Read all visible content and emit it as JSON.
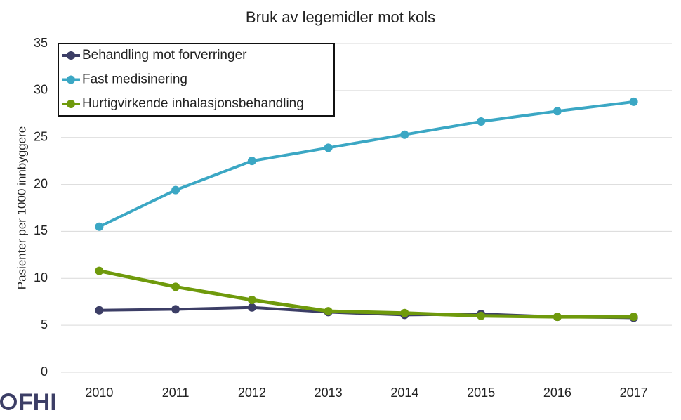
{
  "chart_data": {
    "type": "line",
    "title": "Bruk av legemidler mot kols",
    "y_label": "Pasienter per 1000 innbyggere",
    "categories": [
      "2010",
      "2011",
      "2012",
      "2013",
      "2014",
      "2015",
      "2016",
      "2017"
    ],
    "series": [
      {
        "name": "Behandling mot forverringer",
        "color": "#3c3e66",
        "values": [
          6.6,
          6.7,
          6.9,
          6.4,
          6.1,
          6.2,
          5.9,
          5.8
        ]
      },
      {
        "name": "Fast medisinering",
        "color": "#3ba7c4",
        "values": [
          15.5,
          19.4,
          22.5,
          23.9,
          25.3,
          26.7,
          27.8,
          28.8
        ]
      },
      {
        "name": "Hurtigvirkende inhalasjonsbehandling",
        "color": "#6f9a0c",
        "values": [
          10.8,
          9.1,
          7.7,
          6.5,
          6.3,
          6.0,
          5.9,
          5.9
        ]
      }
    ],
    "ylim": [
      0,
      35
    ],
    "yticks": [
      0,
      5,
      10,
      15,
      20,
      25,
      30,
      35
    ],
    "grid": true,
    "legend": "top-left"
  },
  "logo": "FHI"
}
